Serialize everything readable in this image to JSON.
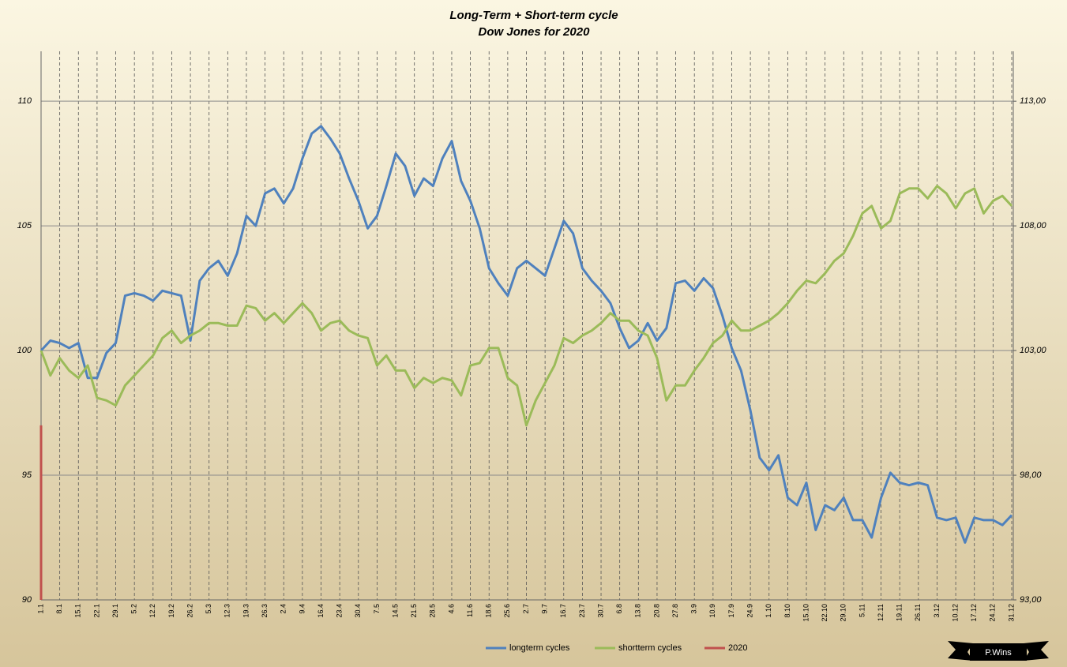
{
  "chart_data": {
    "type": "line",
    "title": "Long-Term + Short-term cycle",
    "subtitle": "Dow Jones for 2020",
    "badge": "P.Wins",
    "categories": [
      "1.1",
      null,
      "8.1",
      null,
      "15.1",
      null,
      "22.1",
      null,
      "29.1",
      null,
      "5.2",
      null,
      "12.2",
      null,
      "19.2",
      null,
      "26.2",
      null,
      "5.3",
      null,
      "12.3",
      null,
      "19.3",
      null,
      "26.3",
      null,
      "2.4",
      null,
      "9.4",
      null,
      "16.4",
      null,
      "23.4",
      null,
      "30.4",
      null,
      "7.5",
      null,
      "14.5",
      null,
      "21.5",
      null,
      "28.5",
      null,
      "4.6",
      null,
      "11.6",
      null,
      "18.6",
      null,
      "25.6",
      null,
      "2.7",
      null,
      "9.7",
      null,
      "16.7",
      null,
      "23.7",
      null,
      "30.7",
      null,
      "6.8",
      null,
      "13.8",
      null,
      "20.8",
      null,
      "27.8",
      null,
      "3.9",
      null,
      "10.9",
      null,
      "17.9",
      null,
      "24.9",
      null,
      "1.10",
      null,
      "8.10",
      null,
      "15.10",
      null,
      "22.10",
      null,
      "29.10",
      null,
      "5.11",
      null,
      "12.11",
      null,
      "19.11",
      null,
      "26.11",
      null,
      "3.12",
      null,
      "10.12",
      null,
      "17.12",
      null,
      "24.12",
      null,
      "31.12"
    ],
    "series": [
      {
        "name": "longterm cycles",
        "color": "#4f81bd",
        "axis": "y",
        "values": [
          100.0,
          100.4,
          100.3,
          100.1,
          100.3,
          98.9,
          98.9,
          99.9,
          100.3,
          102.2,
          102.3,
          102.2,
          102.0,
          102.4,
          102.3,
          102.2,
          100.4,
          102.8,
          103.3,
          103.6,
          103.0,
          103.9,
          105.4,
          105.0,
          106.3,
          106.5,
          105.9,
          106.5,
          107.7,
          108.7,
          109.0,
          108.5,
          107.9,
          106.9,
          106.0,
          104.9,
          105.4,
          106.6,
          107.9,
          107.4,
          106.2,
          106.9,
          106.6,
          107.7,
          108.4,
          106.8,
          106.0,
          104.9,
          103.3,
          102.7,
          102.2,
          103.3,
          103.6,
          103.3,
          103.0,
          104.1,
          105.2,
          104.7,
          103.3,
          102.8,
          102.4,
          101.9,
          100.9,
          100.1,
          100.4,
          101.1,
          100.4,
          100.9,
          102.7,
          102.8,
          102.4,
          102.9,
          102.5,
          101.4,
          100.1,
          99.2,
          97.6,
          95.7,
          95.2,
          95.8,
          94.1,
          93.8,
          94.7,
          92.8,
          93.8,
          93.6,
          94.1,
          93.2,
          93.2,
          92.5,
          94.1,
          95.1,
          94.7,
          94.6,
          94.7,
          94.6,
          93.3,
          93.2,
          93.3,
          92.3,
          93.3,
          93.2,
          93.2,
          93.0,
          93.4
        ]
      },
      {
        "name": "shortterm cycles",
        "color": "#9bbb59",
        "axis": "y2",
        "values": [
          103.0,
          102.0,
          102.7,
          102.2,
          101.9,
          102.4,
          101.1,
          101.0,
          100.8,
          101.6,
          102.0,
          102.4,
          102.8,
          103.5,
          103.8,
          103.3,
          103.6,
          103.8,
          104.1,
          104.1,
          104.0,
          104.0,
          104.8,
          104.7,
          104.2,
          104.5,
          104.1,
          104.5,
          104.9,
          104.5,
          103.8,
          104.1,
          104.2,
          103.8,
          103.6,
          103.5,
          102.4,
          102.8,
          102.2,
          102.2,
          101.5,
          101.9,
          101.7,
          101.9,
          101.8,
          101.2,
          102.4,
          102.5,
          103.1,
          103.1,
          101.9,
          101.6,
          100.0,
          101.0,
          101.7,
          102.4,
          103.5,
          103.3,
          103.6,
          103.8,
          104.1,
          104.5,
          104.2,
          104.2,
          103.8,
          103.6,
          102.7,
          101.0,
          101.6,
          101.6,
          102.2,
          102.7,
          103.3,
          103.6,
          104.2,
          103.8,
          103.8,
          104.0,
          104.2,
          104.5,
          104.9,
          105.4,
          105.8,
          105.7,
          106.1,
          106.6,
          106.9,
          107.6,
          108.5,
          108.8,
          107.9,
          108.2,
          109.3,
          109.5,
          109.5,
          109.1,
          109.6,
          109.3,
          108.7,
          109.3,
          109.5,
          108.5,
          109.0,
          109.2,
          108.8
        ]
      },
      {
        "name": "2020",
        "color": "#c0504d",
        "axis": "y",
        "type": "bar",
        "values": [
          97.0,
          null,
          null,
          null,
          null,
          null,
          null,
          null,
          null,
          null,
          null,
          null,
          null,
          null,
          null,
          null,
          null,
          null,
          null,
          null,
          null,
          null,
          null,
          null,
          null,
          null,
          null,
          null,
          null,
          null,
          null,
          null,
          null,
          null,
          null,
          null,
          null,
          null,
          null,
          null,
          null,
          null,
          null,
          null,
          null,
          null,
          null,
          null,
          null,
          null,
          null,
          null,
          null,
          null,
          null,
          null,
          null,
          null,
          null,
          null,
          null,
          null,
          null,
          null,
          null,
          null,
          null,
          null,
          null,
          null,
          null,
          null,
          null,
          null,
          null,
          null,
          null,
          null,
          null,
          null,
          null,
          null,
          null,
          null,
          null,
          null,
          null,
          null,
          null,
          null,
          null,
          null,
          null,
          null,
          null,
          null,
          null,
          null,
          null,
          null,
          null,
          null,
          null,
          null,
          null
        ]
      }
    ],
    "ylim": [
      90,
      112
    ],
    "yticks": [
      90,
      95,
      100,
      105,
      110
    ],
    "y2lim": [
      93,
      115
    ],
    "y2ticks": [
      {
        "value": 93,
        "label": "93,00"
      },
      {
        "value": 98,
        "label": "98,00"
      },
      {
        "value": 103,
        "label": "103,00"
      },
      {
        "value": 108,
        "label": "108,00"
      },
      {
        "value": 113,
        "label": "113,00"
      }
    ],
    "grid": true,
    "legend": "bottom"
  }
}
